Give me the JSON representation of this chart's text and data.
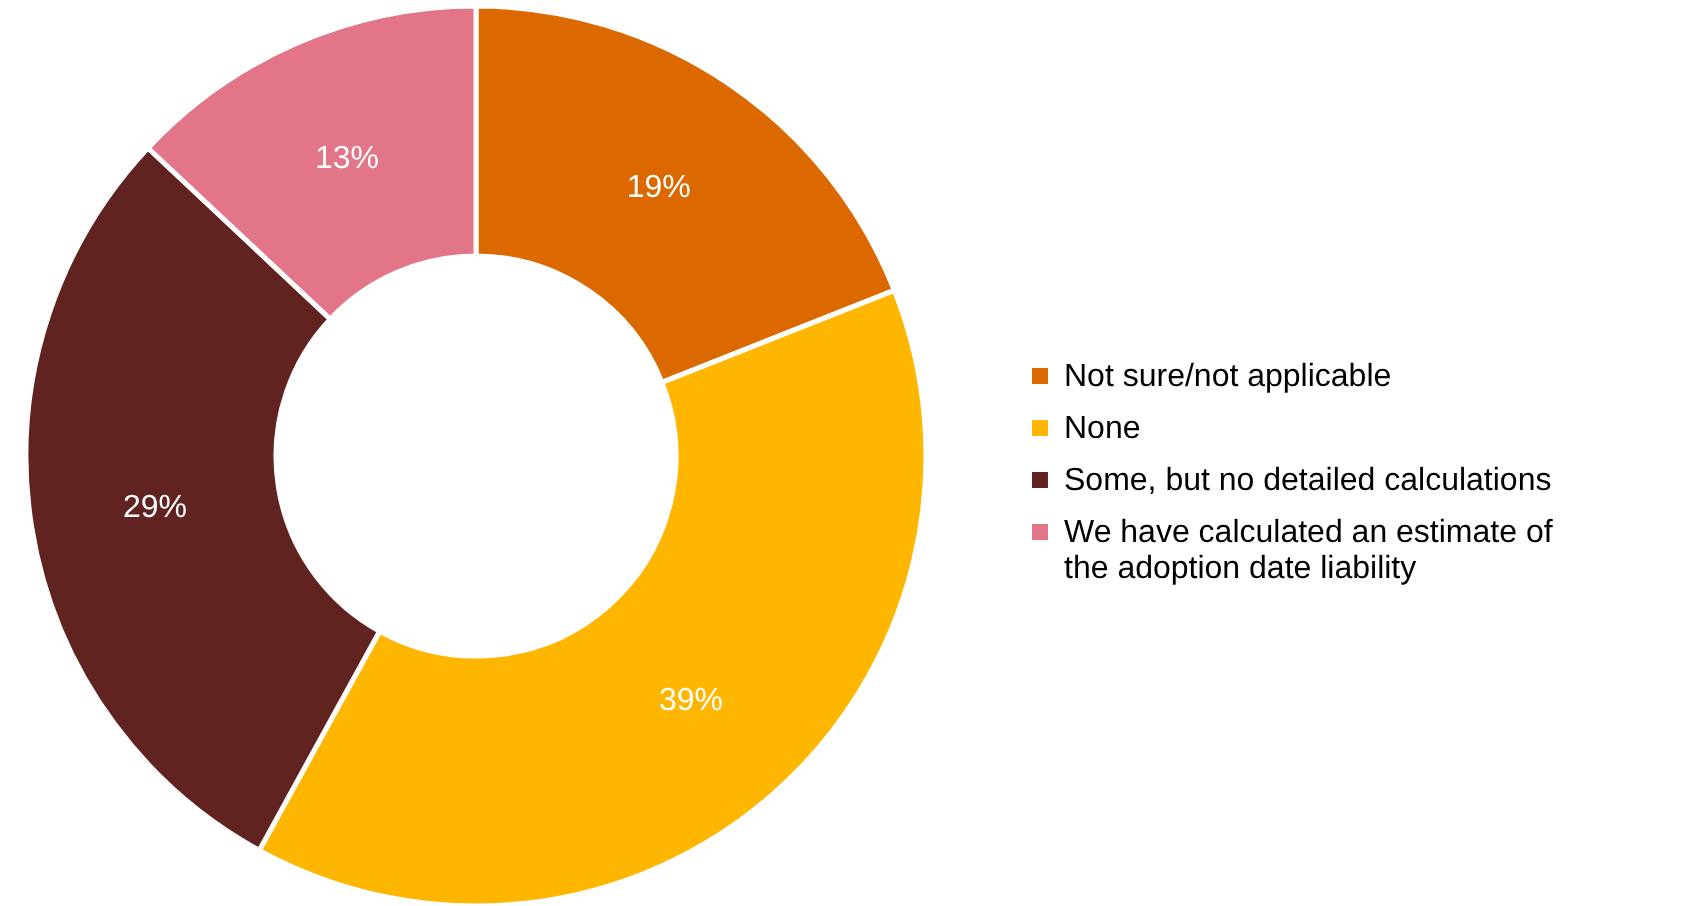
{
  "chart_data": {
    "type": "donut",
    "categories": [
      "Not sure/not applicable",
      "None",
      "Some, but no detailed calculations",
      "We have calculated an estimate of the adoption date liability"
    ],
    "values": [
      19,
      39,
      29,
      13
    ],
    "colors": [
      "#dc6900",
      "#ffb600",
      "#602320",
      "#e27588"
    ],
    "value_labels": [
      "19%",
      "39%",
      "29%",
      "13%"
    ],
    "legend": "right"
  }
}
